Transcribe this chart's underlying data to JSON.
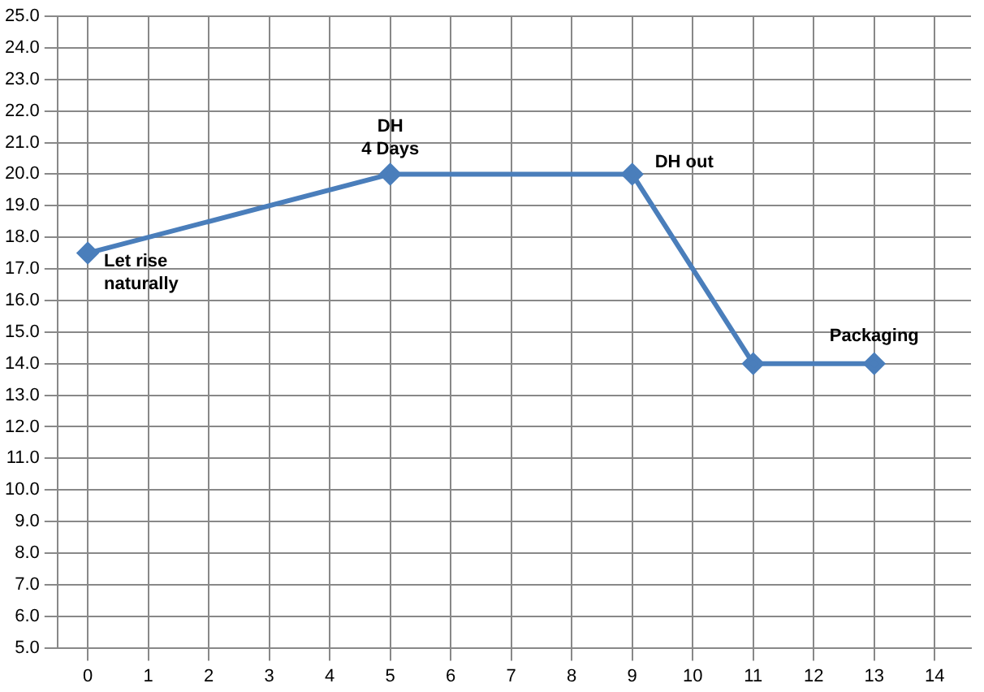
{
  "chart_data": {
    "type": "line",
    "x": [
      0,
      5,
      9,
      11,
      13
    ],
    "series": [
      {
        "color": "#4a7ebb",
        "values": [
          17.5,
          20,
          20,
          14,
          14
        ]
      }
    ],
    "xlim": [
      -0.5,
      14.6
    ],
    "xticks": [
      0,
      1,
      2,
      3,
      4,
      5,
      6,
      7,
      8,
      9,
      10,
      11,
      12,
      13,
      14
    ],
    "ylim": [
      5,
      25
    ],
    "yticks": [
      {
        "value": 5,
        "label": "5.0"
      },
      {
        "value": 6,
        "label": "6.0"
      },
      {
        "value": 7,
        "label": "7.0"
      },
      {
        "value": 8,
        "label": "8.0"
      },
      {
        "value": 9,
        "label": "9.0"
      },
      {
        "value": 10,
        "label": "10.0"
      },
      {
        "value": 11,
        "label": "11.0"
      },
      {
        "value": 12,
        "label": "12.0"
      },
      {
        "value": 13,
        "label": "13.0"
      },
      {
        "value": 14,
        "label": "14.0"
      },
      {
        "value": 15,
        "label": "15.0"
      },
      {
        "value": 16,
        "label": "16.0"
      },
      {
        "value": 17,
        "label": "17.0"
      },
      {
        "value": 18,
        "label": "18.0"
      },
      {
        "value": 19,
        "label": "19.0"
      },
      {
        "value": 20,
        "label": "20.0"
      },
      {
        "value": 21,
        "label": "21.0"
      },
      {
        "value": 22,
        "label": "22.0"
      },
      {
        "value": 23,
        "label": "23.0"
      },
      {
        "value": 24,
        "label": "24.0"
      },
      {
        "value": 25,
        "label": "25.0"
      }
    ],
    "annotations": [
      {
        "text": "Let rise\nnaturally",
        "x": 0,
        "y": 17.5
      },
      {
        "text": "DH\n4 Days",
        "x": 5,
        "y": 20
      },
      {
        "text": "DH out",
        "x": 9,
        "y": 20
      },
      {
        "text": "Packaging",
        "x": 13,
        "y": 14
      }
    ],
    "grid": true,
    "marker": "diamond",
    "line_style": "solid",
    "legend": false
  }
}
